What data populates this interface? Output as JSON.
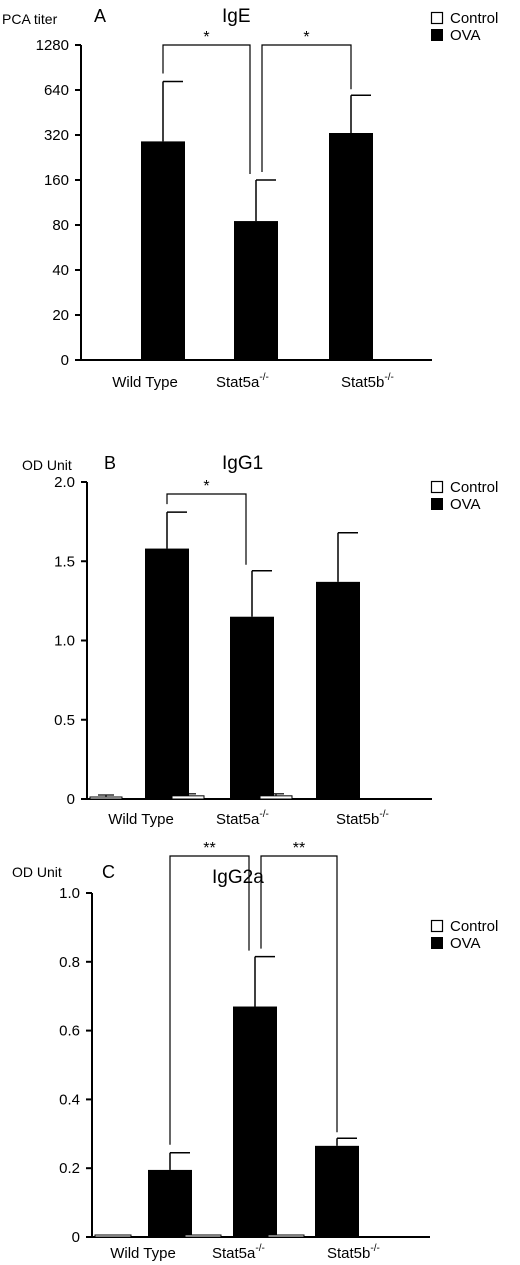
{
  "chart_data": [
    {
      "type": "bar",
      "panel": "A",
      "title": "IgE",
      "ylabel": "PCA titer",
      "y_scale": "log2",
      "y_ticks": [
        "0",
        "20",
        "40",
        "80",
        "160",
        "320",
        "640",
        "1280"
      ],
      "categories": [
        "Wild Type",
        "Stat5a",
        "Stat5b"
      ],
      "category_sup": [
        "",
        "-/-",
        "-/-"
      ],
      "series": [
        {
          "name": "Control",
          "values": [
            0,
            0,
            0
          ],
          "errors": [
            0,
            0,
            0
          ]
        },
        {
          "name": "OVA",
          "values": [
            290,
            85,
            330
          ],
          "errors": [
            440,
            75,
            260
          ]
        }
      ],
      "significance": [
        {
          "from": 0,
          "to": 1,
          "label": "*"
        },
        {
          "from": 1,
          "to": 2,
          "label": "*"
        }
      ],
      "legend_position": "top-right",
      "grid": false
    },
    {
      "type": "bar",
      "panel": "B",
      "title": "IgG1",
      "ylabel": "OD Unit",
      "ylim": [
        0,
        2.0
      ],
      "y_ticks": [
        "0",
        "0.5",
        "1.0",
        "1.5",
        "2.0"
      ],
      "categories": [
        "Wild Type",
        "Stat5a",
        "Stat5b"
      ],
      "category_sup": [
        "",
        "-/-",
        "-/-"
      ],
      "series": [
        {
          "name": "Control",
          "values": [
            0.01,
            0.02,
            0.02
          ],
          "errors": [
            0.005,
            0.01,
            0.01
          ]
        },
        {
          "name": "OVA",
          "values": [
            1.58,
            1.15,
            1.37
          ],
          "errors": [
            0.23,
            0.29,
            0.31
          ]
        }
      ],
      "significance": [
        {
          "from": 0,
          "to": 1,
          "label": "*"
        }
      ],
      "legend_position": "top-right",
      "grid": false
    },
    {
      "type": "bar",
      "panel": "C",
      "title": "IgG2a",
      "ylabel": "OD Unit",
      "ylim": [
        0,
        1.0
      ],
      "y_ticks": [
        "0",
        "0.2",
        "0.4",
        "0.6",
        "0.8",
        "1.0"
      ],
      "categories": [
        "Wild Type",
        "Stat5a",
        "Stat5b"
      ],
      "category_sup": [
        "",
        "-/-",
        "-/-"
      ],
      "series": [
        {
          "name": "Control",
          "values": [
            0.003,
            0.003,
            0.004
          ],
          "errors": [
            0,
            0,
            0
          ]
        },
        {
          "name": "OVA",
          "values": [
            0.195,
            0.67,
            0.265
          ],
          "errors": [
            0.05,
            0.145,
            0.022
          ]
        }
      ],
      "significance": [
        {
          "from": 0,
          "to": 1,
          "label": "**"
        },
        {
          "from": 1,
          "to": 2,
          "label": "**"
        }
      ],
      "legend_position": "top-right",
      "grid": false
    }
  ]
}
